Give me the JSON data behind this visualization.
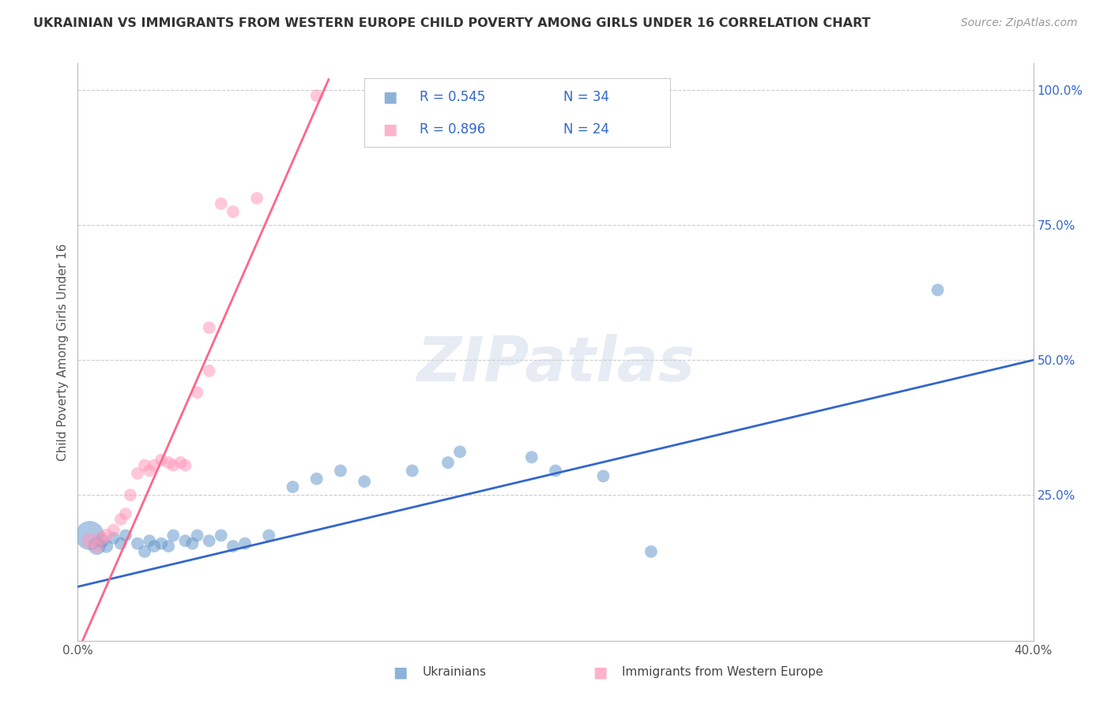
{
  "title": "UKRAINIAN VS IMMIGRANTS FROM WESTERN EUROPE CHILD POVERTY AMONG GIRLS UNDER 16 CORRELATION CHART",
  "source": "Source: ZipAtlas.com",
  "ylabel": "Child Poverty Among Girls Under 16",
  "xlim": [
    0.0,
    0.4
  ],
  "ylim": [
    -0.02,
    1.05
  ],
  "blue_color": "#6699CC",
  "pink_color": "#FF99BB",
  "blue_line_color": "#3366CC",
  "pink_line_color": "#FF6688",
  "legend_R1": "R = 0.545",
  "legend_N1": "N = 34",
  "legend_R2": "R = 0.896",
  "legend_N2": "N = 24",
  "watermark": "ZIPatlas",
  "blue_scatter": [
    [
      0.005,
      0.175
    ],
    [
      0.008,
      0.155
    ],
    [
      0.01,
      0.165
    ],
    [
      0.012,
      0.155
    ],
    [
      0.015,
      0.17
    ],
    [
      0.018,
      0.16
    ],
    [
      0.02,
      0.175
    ],
    [
      0.025,
      0.16
    ],
    [
      0.028,
      0.145
    ],
    [
      0.03,
      0.165
    ],
    [
      0.032,
      0.155
    ],
    [
      0.035,
      0.16
    ],
    [
      0.038,
      0.155
    ],
    [
      0.04,
      0.175
    ],
    [
      0.045,
      0.165
    ],
    [
      0.048,
      0.16
    ],
    [
      0.05,
      0.175
    ],
    [
      0.055,
      0.165
    ],
    [
      0.06,
      0.175
    ],
    [
      0.065,
      0.155
    ],
    [
      0.07,
      0.16
    ],
    [
      0.08,
      0.175
    ],
    [
      0.09,
      0.265
    ],
    [
      0.1,
      0.28
    ],
    [
      0.11,
      0.295
    ],
    [
      0.12,
      0.275
    ],
    [
      0.14,
      0.295
    ],
    [
      0.155,
      0.31
    ],
    [
      0.16,
      0.33
    ],
    [
      0.19,
      0.32
    ],
    [
      0.2,
      0.295
    ],
    [
      0.22,
      0.285
    ],
    [
      0.24,
      0.145
    ],
    [
      0.36,
      0.63
    ]
  ],
  "pink_scatter": [
    [
      0.005,
      0.165
    ],
    [
      0.008,
      0.155
    ],
    [
      0.01,
      0.17
    ],
    [
      0.012,
      0.175
    ],
    [
      0.015,
      0.185
    ],
    [
      0.018,
      0.205
    ],
    [
      0.02,
      0.215
    ],
    [
      0.022,
      0.25
    ],
    [
      0.025,
      0.29
    ],
    [
      0.028,
      0.305
    ],
    [
      0.03,
      0.295
    ],
    [
      0.032,
      0.305
    ],
    [
      0.035,
      0.315
    ],
    [
      0.038,
      0.31
    ],
    [
      0.04,
      0.305
    ],
    [
      0.043,
      0.31
    ],
    [
      0.045,
      0.305
    ],
    [
      0.05,
      0.44
    ],
    [
      0.055,
      0.48
    ],
    [
      0.055,
      0.56
    ],
    [
      0.06,
      0.79
    ],
    [
      0.065,
      0.775
    ],
    [
      0.075,
      0.8
    ],
    [
      0.1,
      0.99
    ]
  ],
  "blue_sizes": [
    700,
    250,
    180,
    150,
    130,
    130,
    130,
    130,
    130,
    130,
    130,
    130,
    130,
    130,
    130,
    130,
    130,
    130,
    130,
    130,
    130,
    130,
    130,
    130,
    130,
    130,
    130,
    130,
    130,
    130,
    130,
    130,
    130,
    130
  ],
  "pink_sizes": [
    200,
    150,
    150,
    150,
    130,
    130,
    130,
    130,
    130,
    130,
    130,
    130,
    130,
    130,
    130,
    130,
    130,
    130,
    130,
    130,
    130,
    130,
    130,
    130
  ],
  "blue_line_x": [
    0.0,
    0.4
  ],
  "blue_line_y": [
    0.08,
    0.5
  ],
  "pink_line_x": [
    0.002,
    0.105
  ],
  "pink_line_y": [
    -0.02,
    1.02
  ]
}
